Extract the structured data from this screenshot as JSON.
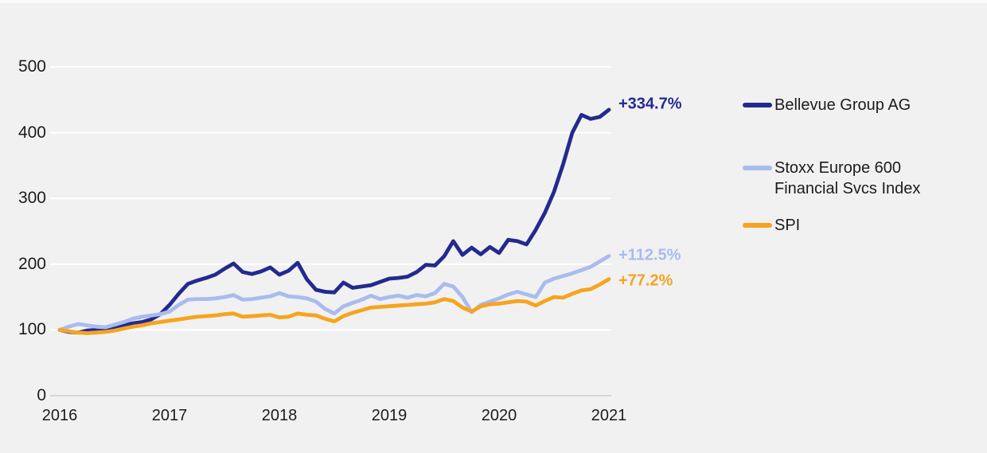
{
  "chart_data": {
    "type": "line",
    "x_ticks": [
      "2016",
      "2017",
      "2018",
      "2019",
      "2020",
      "2021"
    ],
    "y_ticks": [
      0,
      100,
      200,
      300,
      400,
      500
    ],
    "ylim": [
      0,
      500
    ],
    "base_value": 100,
    "points_per_year": 12,
    "grid": "horizontal",
    "legend_position": "right",
    "background": "#f1f1f2",
    "grid_color": "#ffffff",
    "baseline_color": "#d5d5d7",
    "text_color": "#1c1c1e",
    "series": [
      {
        "name": "Bellevue Group AG",
        "color": "#232a8e",
        "end_label": "+334.7%",
        "values": [
          100,
          97,
          96,
          99,
          100,
          102,
          104,
          107,
          110,
          112,
          116,
          124,
          138,
          155,
          170,
          175,
          179,
          184,
          193,
          201,
          188,
          185,
          189,
          195,
          184,
          190,
          202,
          177,
          161,
          158,
          157,
          172,
          164,
          166,
          168,
          173,
          178,
          179,
          181,
          188,
          199,
          198,
          212,
          235,
          214,
          225,
          215,
          226,
          217,
          237,
          235,
          230,
          252,
          278,
          310,
          352,
          400,
          427,
          421,
          424,
          434.7
        ]
      },
      {
        "name": "Stoxx Europe 600 Financial Svcs Index",
        "color": "#a9bcee",
        "end_label": "+112.5%",
        "values": [
          100,
          105,
          109,
          107,
          105,
          104,
          108,
          112,
          117,
          120,
          122,
          124,
          128,
          138,
          146,
          147,
          147,
          148,
          150,
          153,
          146,
          147,
          149,
          151,
          156,
          151,
          150,
          148,
          143,
          132,
          125,
          136,
          141,
          146,
          152,
          147,
          150,
          152,
          149,
          153,
          151,
          156,
          170,
          166,
          150,
          127,
          138,
          143,
          148,
          154,
          158,
          154,
          150,
          172,
          178,
          182,
          186,
          191,
          196,
          204,
          212.5
        ]
      },
      {
        "name": "SPI",
        "color": "#f6a41f",
        "end_label": "+77.2%",
        "values": [
          100,
          98,
          96,
          95,
          96,
          97,
          99,
          102,
          105,
          107,
          110,
          112,
          114,
          116,
          118,
          120,
          121,
          122,
          124,
          125,
          120,
          121,
          122,
          123,
          119,
          120,
          125,
          123,
          122,
          117,
          113,
          121,
          126,
          130,
          134,
          135,
          136,
          137,
          138,
          139,
          140,
          142,
          147,
          144,
          134,
          128,
          136,
          139,
          140,
          142,
          144,
          143,
          137,
          144,
          150,
          149,
          155,
          160,
          162,
          169,
          177.2
        ]
      }
    ]
  },
  "legend": {
    "items": [
      {
        "line1": "Bellevue Group AG",
        "line2": ""
      },
      {
        "line1": "Stoxx Europe 600",
        "line2": "Financial Svcs Index"
      },
      {
        "line1": "SPI",
        "line2": ""
      }
    ]
  }
}
